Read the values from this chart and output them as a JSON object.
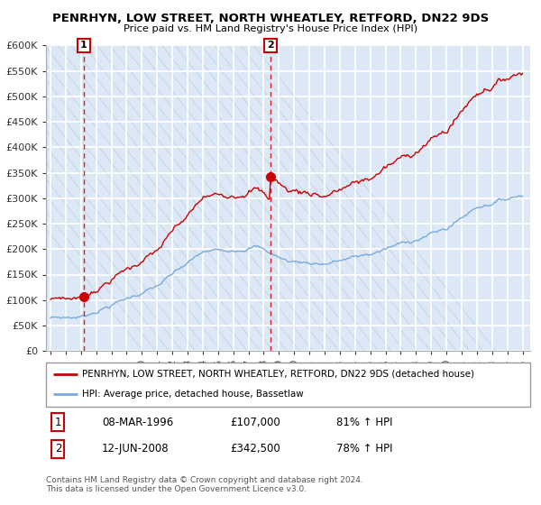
{
  "title": "PENRHYN, LOW STREET, NORTH WHEATLEY, RETFORD, DN22 9DS",
  "subtitle": "Price paid vs. HM Land Registry's House Price Index (HPI)",
  "legend_line1": "PENRHYN, LOW STREET, NORTH WHEATLEY, RETFORD, DN22 9DS (detached house)",
  "legend_line2": "HPI: Average price, detached house, Bassetlaw",
  "table_row1": [
    "1",
    "08-MAR-1996",
    "£107,000",
    "81% ↑ HPI"
  ],
  "table_row2": [
    "2",
    "12-JUN-2008",
    "£342,500",
    "78% ↑ HPI"
  ],
  "footer": "Contains HM Land Registry data © Crown copyright and database right 2024.\nThis data is licensed under the Open Government Licence v3.0.",
  "ylim": [
    0,
    600000
  ],
  "yticks": [
    0,
    50000,
    100000,
    150000,
    200000,
    250000,
    300000,
    350000,
    400000,
    450000,
    500000,
    550000,
    600000
  ],
  "sale1_year": 1996.19,
  "sale1_price": 107000,
  "sale2_year": 2008.45,
  "sale2_price": 342500,
  "red_color": "#cc0000",
  "blue_color": "#7aabdc",
  "bg_color": "#dce8f5",
  "hatch_color": "#b8c8d8",
  "grid_color": "#ffffff",
  "xstart": 1994,
  "xend": 2025
}
